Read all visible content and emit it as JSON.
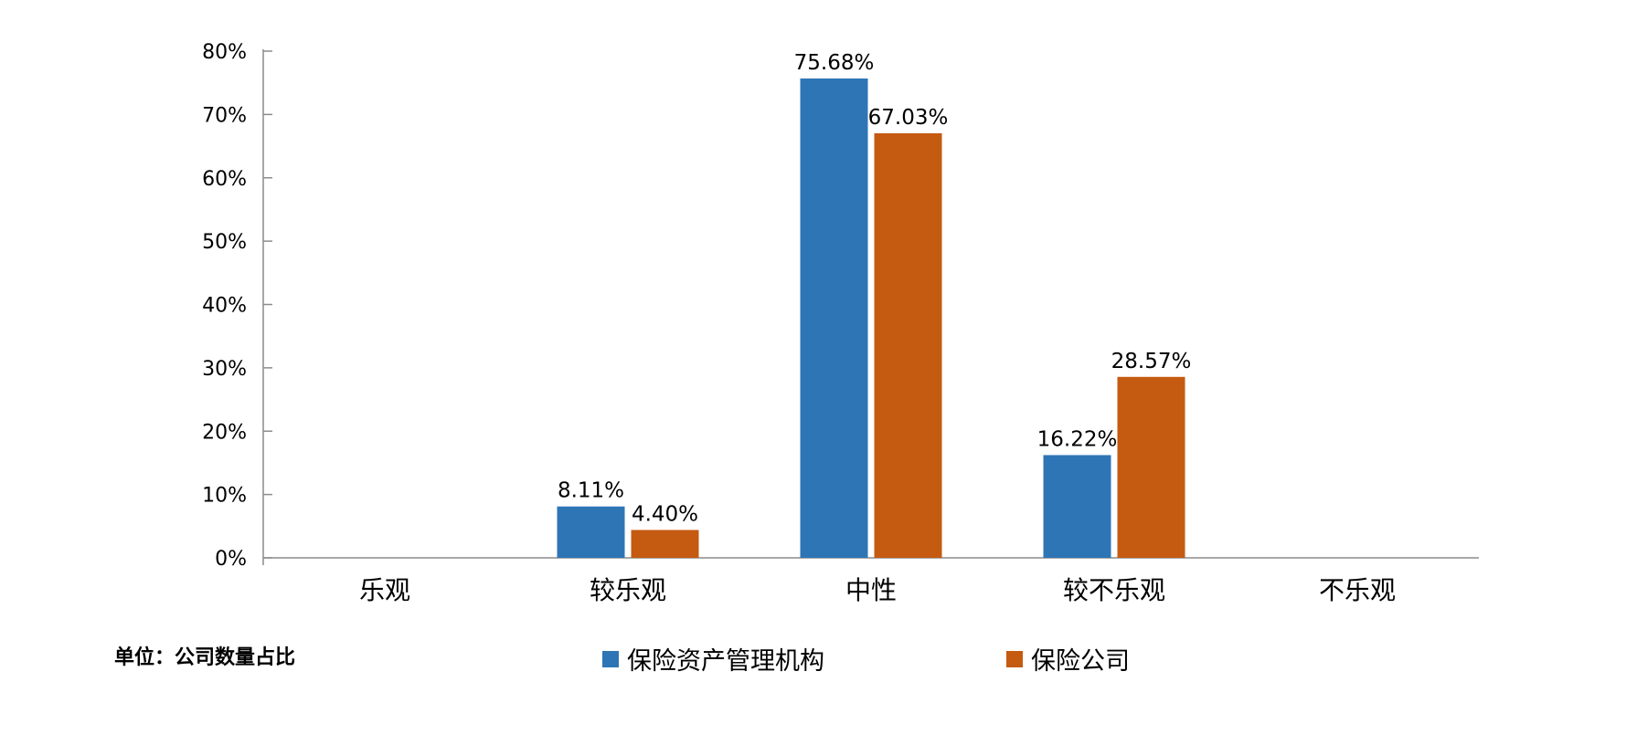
{
  "chart_data": {
    "type": "bar",
    "categories": [
      "乐观",
      "较乐观",
      "中性",
      "较不乐观",
      "不乐观"
    ],
    "series": [
      {
        "name": "保险资产管理机构",
        "color": "#2E75B6",
        "values": [
          null,
          8.11,
          75.68,
          16.22,
          null
        ],
        "labels": [
          null,
          "8.11%",
          "75.68%",
          "16.22%",
          null
        ]
      },
      {
        "name": "保险公司",
        "color": "#C55A11",
        "values": [
          null,
          4.4,
          67.03,
          28.57,
          null
        ],
        "labels": [
          null,
          "4.40%",
          "67.03%",
          "28.57%",
          null
        ]
      }
    ],
    "ylim": [
      0,
      80
    ],
    "yticks": [
      0,
      10,
      20,
      30,
      40,
      50,
      60,
      70,
      80
    ],
    "ytick_labels": [
      "0%",
      "10%",
      "20%",
      "30%",
      "40%",
      "50%",
      "60%",
      "70%",
      "80%"
    ],
    "grid": false,
    "legend_position": "bottom"
  },
  "unit_note": "单位：公司数量占比"
}
